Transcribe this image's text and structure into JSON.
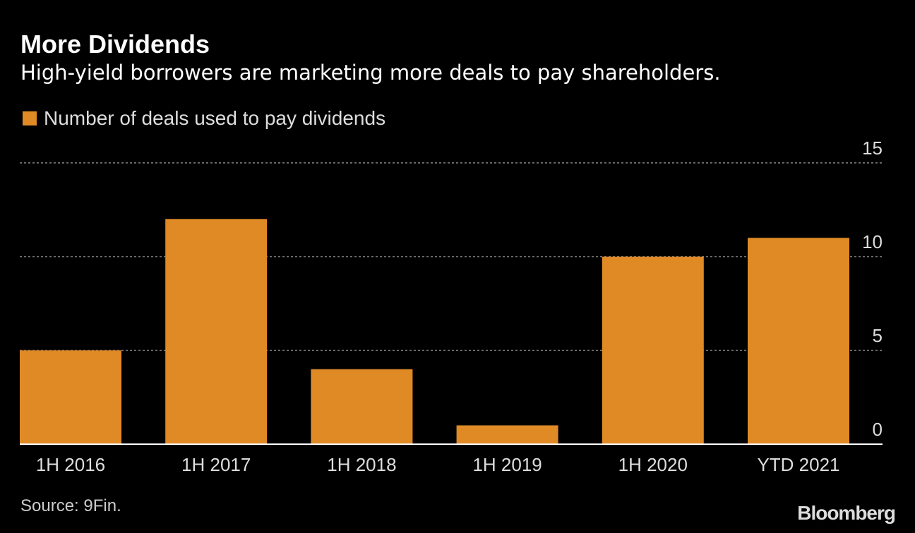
{
  "chart_data": {
    "type": "bar",
    "title": "More Dividends",
    "subtitle": "High-yield borrowers are marketing more deals to pay shareholders.",
    "categories": [
      "1H 2016",
      "1H 2017",
      "1H 2018",
      "1H 2019",
      "1H 2020",
      "YTD 2021"
    ],
    "series": [
      {
        "name": "Number of deals used to pay dividends",
        "values": [
          5,
          12,
          4,
          1,
          10,
          11
        ]
      }
    ],
    "yticks": [
      0,
      5,
      10,
      15
    ],
    "ylim": [
      0,
      15
    ],
    "grid": true,
    "legend": "top-left",
    "xlabel": "",
    "ylabel": ""
  },
  "source": "Source: 9Fin.",
  "logo": "Bloomberg",
  "colors": {
    "bar": "#e08a26",
    "grid": "#8a8a8a",
    "text": "#dddddd"
  }
}
